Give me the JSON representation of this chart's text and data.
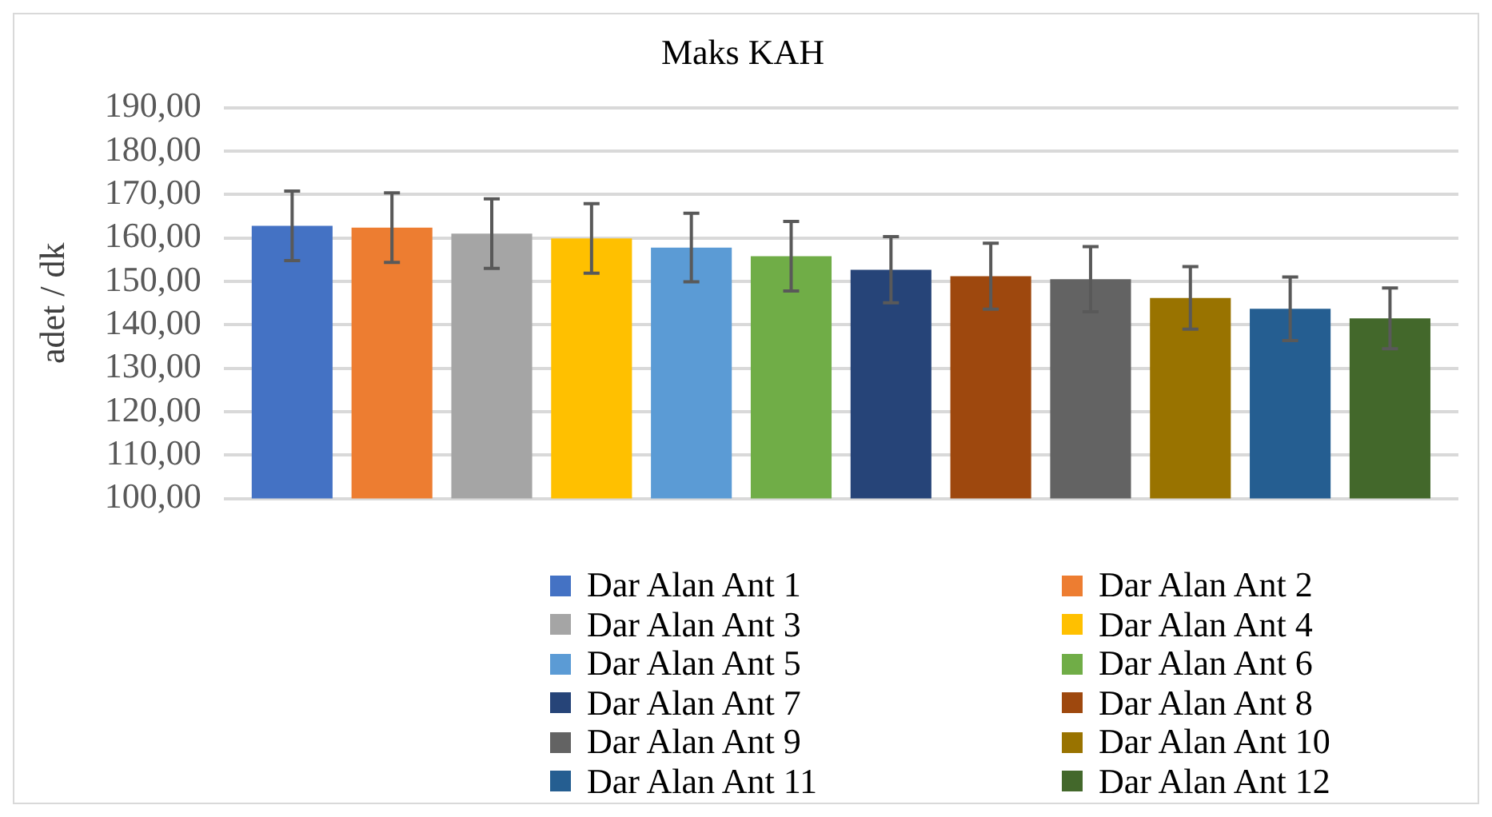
{
  "chart_data": {
    "type": "bar",
    "title": "Maks KAH",
    "ylabel": "adet / dk",
    "categories": [
      null
    ],
    "series": [
      {
        "name": "Dar Alan Ant 1",
        "color": "#4472c4",
        "values": [
          162.8
        ],
        "errors": [
          8
        ]
      },
      {
        "name": "Dar Alan Ant 2",
        "color": "#ed7d31",
        "values": [
          162.4
        ],
        "errors": [
          8
        ]
      },
      {
        "name": "Dar Alan Ant 3",
        "color": "#a5a5a5",
        "values": [
          161
        ],
        "errors": [
          8
        ]
      },
      {
        "name": "Dar Alan Ant 4",
        "color": "#ffc000",
        "values": [
          159.9
        ],
        "errors": [
          8
        ]
      },
      {
        "name": "Dar Alan Ant 5",
        "color": "#5b9bd5",
        "values": [
          157.8
        ],
        "errors": [
          7.9
        ]
      },
      {
        "name": "Dar Alan Ant 6",
        "color": "#70ad47",
        "values": [
          155.8
        ],
        "errors": [
          8
        ]
      },
      {
        "name": "Dar Alan Ant 7",
        "color": "#264478",
        "values": [
          152.7
        ],
        "errors": [
          7.6
        ]
      },
      {
        "name": "Dar Alan Ant 8",
        "color": "#9e480e",
        "values": [
          151.2
        ],
        "errors": [
          7.6
        ]
      },
      {
        "name": "Dar Alan Ant 9",
        "color": "#636363",
        "values": [
          150.5
        ],
        "errors": [
          7.5
        ]
      },
      {
        "name": "Dar Alan Ant 10",
        "color": "#997300",
        "values": [
          146.2
        ],
        "errors": [
          7.2
        ]
      },
      {
        "name": "Dar Alan Ant 11",
        "color": "#255e91",
        "values": [
          143.7
        ],
        "errors": [
          7.3
        ]
      },
      {
        "name": "Dar Alan Ant 12",
        "color": "#43682b",
        "values": [
          141.5
        ],
        "errors": [
          7
        ]
      }
    ],
    "ylim": [
      100,
      190
    ],
    "yticks": [
      {
        "value": 100,
        "label": "100,00"
      },
      {
        "value": 110,
        "label": "110,00"
      },
      {
        "value": 120,
        "label": "120,00"
      },
      {
        "value": 130,
        "label": "130,00"
      },
      {
        "value": 140,
        "label": "140,00"
      },
      {
        "value": 150,
        "label": "150,00"
      },
      {
        "value": 160,
        "label": "160,00"
      },
      {
        "value": 170,
        "label": "170,00"
      },
      {
        "value": 180,
        "label": "180,00"
      },
      {
        "value": 190,
        "label": "190,00"
      }
    ],
    "grid": "y",
    "legend": "bottom"
  }
}
